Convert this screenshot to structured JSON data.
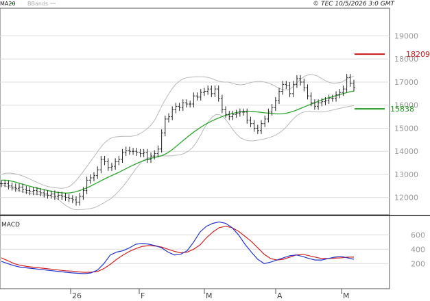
{
  "header": {
    "legend_items": [
      {
        "label": "MA20",
        "color": "#2aa52a"
      },
      {
        "label": "BBands",
        "color": "#b8b8b8"
      }
    ],
    "copyright": "© TEC 10/5/2026 3:0 GMT"
  },
  "colors": {
    "ma": "#2aa52a",
    "bbands": "#b8b8b8",
    "price_bars": "#222222",
    "grid": "#dcdcdc",
    "resistance": "#c81414",
    "support": "#1f9a1f",
    "macd_line": "#2233cc",
    "signal_line": "#d42020",
    "axis_text": "#9a9a9a"
  },
  "chart_data": [
    {
      "type": "line",
      "panel": "price",
      "ylim": [
        11250,
        20200
      ],
      "y_ticks": [
        "12000",
        "13000",
        "14000",
        "15000",
        "16000",
        "17000",
        "18000",
        "19000"
      ],
      "x_ticks": [
        "26",
        "F",
        "M",
        "A",
        "M"
      ],
      "resistance": {
        "value": 18209,
        "label": "18209"
      },
      "support": {
        "value": 15838,
        "label": "15838"
      },
      "series": [
        {
          "name": "MA20",
          "values": [
            12750,
            12750,
            12730,
            12690,
            12640,
            12590,
            12540,
            12490,
            12440,
            12400,
            12360,
            12320,
            12280,
            12250,
            12220,
            12200,
            12190,
            12200,
            12230,
            12280,
            12340,
            12410,
            12490,
            12580,
            12670,
            12760,
            12850,
            12930,
            13010,
            13090,
            13180,
            13270,
            13360,
            13440,
            13520,
            13590,
            13650,
            13700,
            13740,
            13780,
            13840,
            13930,
            14050,
            14190,
            14340,
            14490,
            14630,
            14770,
            14900,
            15020,
            15130,
            15230,
            15320,
            15400,
            15470,
            15540,
            15590,
            15640,
            15680,
            15710,
            15730,
            15740,
            15730,
            15710,
            15690,
            15670,
            15650,
            15630,
            15620,
            15620,
            15640,
            15680,
            15730,
            15800,
            15870,
            15940,
            16010,
            16080,
            16150,
            16220,
            16280,
            16330,
            16380,
            16430,
            16480,
            16530,
            16580,
            16610
          ]
        }
      ],
      "bbands_upper": [
        13000,
        13050,
        13060,
        13040,
        13000,
        12950,
        12880,
        12800,
        12720,
        12640,
        12560,
        12500,
        12460,
        12430,
        12410,
        12400,
        12420,
        12500,
        12650,
        12850,
        13080,
        13320,
        13560,
        13800,
        14050,
        14280,
        14450,
        14570,
        14620,
        14640,
        14650,
        14650,
        14650,
        14680,
        14750,
        14850,
        14980,
        15150,
        15400,
        15750,
        16100,
        16400,
        16680,
        16900,
        17050,
        17150,
        17200,
        17220,
        17230,
        17230,
        17230,
        17200,
        17150,
        17080,
        17020,
        17000,
        17000,
        16950,
        16900,
        16880,
        16900,
        16950,
        17000,
        17020,
        17030,
        17000,
        16950,
        16880,
        16780,
        16700,
        16650,
        16680,
        16800,
        16980,
        17150,
        17270,
        17330,
        17320,
        17260,
        17160,
        17060,
        16980,
        16950,
        16960,
        17000,
        17100,
        17200,
        17250
      ],
      "bbands_lower": [
        12550,
        12500,
        12440,
        12380,
        12330,
        12270,
        12220,
        12180,
        12150,
        12130,
        12110,
        12100,
        12080,
        12020,
        11920,
        11780,
        11640,
        11540,
        11480,
        11470,
        11480,
        11500,
        11520,
        11560,
        11640,
        11740,
        11840,
        11950,
        12100,
        12280,
        12480,
        12700,
        12950,
        13200,
        13420,
        13600,
        13700,
        13760,
        13800,
        13800,
        13800,
        13800,
        13810,
        13830,
        13850,
        13900,
        13990,
        14130,
        14350,
        14650,
        14980,
        15260,
        15480,
        15600,
        15580,
        15450,
        15230,
        14970,
        14750,
        14590,
        14500,
        14460,
        14450,
        14470,
        14500,
        14540,
        14590,
        14650,
        14730,
        14850,
        15000,
        15200,
        15400,
        15560,
        15660,
        15720,
        15740,
        15720,
        15700,
        15700,
        15720,
        15760,
        15800,
        15840,
        15880,
        15920,
        15950,
        15980
      ],
      "closes": [
        12600,
        12600,
        12500,
        12450,
        12400,
        12450,
        12350,
        12300,
        12250,
        12300,
        12250,
        12200,
        12150,
        12100,
        12150,
        12050,
        12100,
        12050,
        12000,
        11950,
        11900,
        11800,
        12050,
        12300,
        12750,
        12850,
        12950,
        13200,
        13650,
        13550,
        13300,
        13350,
        13550,
        13650,
        13950,
        14050,
        14000,
        14000,
        13950,
        13900,
        13950,
        13650,
        13800,
        13900,
        14100,
        14800,
        15400,
        15500,
        15800,
        15950,
        15900,
        16100,
        16050,
        16050,
        16400,
        16350,
        16550,
        16600,
        16700,
        16500,
        16700,
        16300,
        15800,
        15600,
        15500,
        15600,
        15650,
        15700,
        15700,
        15350,
        15200,
        15000,
        14900,
        15200,
        15400,
        15700,
        15900,
        16200,
        16600,
        16900,
        16850,
        16500,
        16900,
        17150,
        17000,
        16750,
        16400,
        16100,
        15950,
        16100,
        16150,
        16200,
        16300,
        16300,
        16450,
        16550,
        16700,
        17200,
        16950,
        16750
      ],
      "bar_range": 300
    },
    {
      "type": "line",
      "panel": "macd",
      "title": "MACD",
      "ylim": [
        -140,
        860
      ],
      "y_ticks": [
        "200",
        "400",
        "600"
      ],
      "series": [
        {
          "name": "MACD",
          "values": [
            230,
            200,
            170,
            150,
            140,
            130,
            120,
            110,
            100,
            90,
            80,
            70,
            65,
            60,
            70,
            110,
            200,
            320,
            360,
            380,
            420,
            470,
            480,
            470,
            450,
            420,
            360,
            320,
            330,
            380,
            500,
            640,
            720,
            760,
            780,
            760,
            700,
            600,
            470,
            360,
            260,
            200,
            220,
            250,
            280,
            310,
            320,
            300,
            270,
            250,
            250,
            270,
            290,
            300,
            280,
            260
          ]
        },
        {
          "name": "Signal",
          "values": [
            280,
            240,
            200,
            175,
            160,
            150,
            140,
            130,
            120,
            110,
            100,
            95,
            85,
            78,
            80,
            90,
            130,
            190,
            260,
            320,
            370,
            410,
            440,
            450,
            445,
            430,
            400,
            370,
            350,
            360,
            400,
            460,
            560,
            640,
            700,
            720,
            700,
            650,
            580,
            510,
            420,
            330,
            270,
            250,
            260,
            290,
            320,
            330,
            310,
            290,
            270,
            270,
            275,
            280,
            290,
            290
          ]
        }
      ]
    }
  ]
}
